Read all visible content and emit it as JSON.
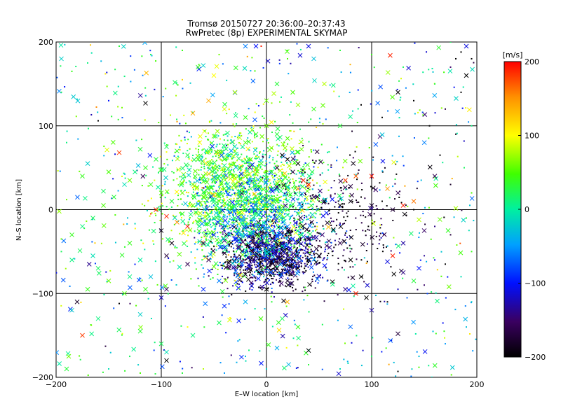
{
  "chart_data": {
    "type": "scatter",
    "title": "Tromsø 20150727 20:36:00–20:37:43",
    "subtitle": "RwPretec (8p) EXPERIMENTAL SKYMAP",
    "xlabel": "E–W location [km]",
    "ylabel": "N–S location [km]",
    "xlim": [
      -200,
      200
    ],
    "ylim": [
      -200,
      200
    ],
    "x_ticks": [
      -200,
      -100,
      0,
      100,
      200
    ],
    "y_ticks": [
      -200,
      -100,
      0,
      100,
      200
    ],
    "grid": true,
    "colorbar": {
      "label": "[m/s]",
      "range": [
        -200,
        200
      ],
      "ticks": [
        200,
        100,
        0,
        -100,
        -200
      ],
      "colormap": "black-purple-blue-cyan-green-yellow-red"
    },
    "marker_types": [
      "dot",
      "x"
    ],
    "points_note_values": "representative sample; [x_km, y_km, velocity_m_s, marker]",
    "points": [
      [
        -115,
        127,
        -200,
        "x"
      ],
      [
        -160,
        106,
        -200,
        "dot"
      ],
      [
        125,
        140,
        -200,
        "x"
      ],
      [
        -180,
        -110,
        -180,
        "x"
      ],
      [
        -140,
        68,
        180,
        "x"
      ],
      [
        -70,
        115,
        140,
        "x"
      ],
      [
        -85,
        105,
        150,
        "dot"
      ],
      [
        -120,
        72,
        30,
        "x"
      ],
      [
        -175,
        40,
        40,
        "x"
      ],
      [
        -155,
        22,
        20,
        "x"
      ],
      [
        -190,
        12,
        60,
        "dot"
      ],
      [
        -197,
        -2,
        70,
        "x"
      ],
      [
        -195,
        -35,
        60,
        "dot"
      ],
      [
        -130,
        -40,
        40,
        "x"
      ],
      [
        -165,
        -55,
        -10,
        "x"
      ],
      [
        -140,
        -112,
        -200,
        "dot"
      ],
      [
        -120,
        -125,
        -20,
        "x"
      ],
      [
        -175,
        -150,
        180,
        "x"
      ],
      [
        -188,
        -175,
        60,
        "x"
      ],
      [
        -130,
        -175,
        20,
        "dot"
      ],
      [
        -100,
        -105,
        -120,
        "x"
      ],
      [
        -75,
        -140,
        100,
        "dot"
      ],
      [
        -95,
        -95,
        -150,
        "x"
      ],
      [
        -60,
        -95,
        -90,
        "x"
      ],
      [
        -75,
        -65,
        -160,
        "x"
      ],
      [
        -95,
        -55,
        -170,
        "x"
      ],
      [
        -90,
        -40,
        -190,
        "x"
      ],
      [
        -100,
        -25,
        -190,
        "x"
      ],
      [
        -105,
        0,
        190,
        "x"
      ],
      [
        -95,
        -8,
        190,
        "x"
      ],
      [
        -85,
        -15,
        150,
        "x"
      ],
      [
        -75,
        -20,
        200,
        "x"
      ],
      [
        -110,
        -5,
        180,
        "dot"
      ],
      [
        -60,
        -40,
        -160,
        "x"
      ],
      [
        -55,
        -60,
        -160,
        "x"
      ],
      [
        -65,
        -82,
        -120,
        "dot"
      ],
      [
        -45,
        -85,
        -60,
        "x"
      ],
      [
        -25,
        -78,
        110,
        "x"
      ],
      [
        -15,
        -72,
        -190,
        "x"
      ],
      [
        -5,
        -68,
        -200,
        "x"
      ],
      [
        5,
        -62,
        -200,
        "x"
      ],
      [
        10,
        -70,
        -190,
        "x"
      ],
      [
        15,
        -55,
        -170,
        "x"
      ],
      [
        -10,
        -55,
        -170,
        "x"
      ],
      [
        -20,
        -60,
        -180,
        "dot"
      ],
      [
        0,
        -95,
        -200,
        "x"
      ],
      [
        20,
        -85,
        -180,
        "x"
      ],
      [
        30,
        -70,
        -200,
        "x"
      ],
      [
        40,
        -60,
        -200,
        "x"
      ],
      [
        50,
        -55,
        -200,
        "x"
      ],
      [
        60,
        -45,
        -140,
        "x"
      ],
      [
        70,
        -40,
        -160,
        "x"
      ],
      [
        80,
        -60,
        -200,
        "x"
      ],
      [
        90,
        -80,
        -200,
        "x"
      ],
      [
        95,
        -105,
        -200,
        "x"
      ],
      [
        85,
        -100,
        190,
        "x"
      ],
      [
        75,
        -95,
        -140,
        "x"
      ],
      [
        100,
        -120,
        -130,
        "x"
      ],
      [
        115,
        -110,
        -200,
        "dot"
      ],
      [
        125,
        -95,
        -120,
        "dot"
      ],
      [
        125,
        -148,
        -170,
        "x"
      ],
      [
        125,
        -193,
        -200,
        "dot"
      ],
      [
        40,
        -168,
        -200,
        "x"
      ],
      [
        30,
        -140,
        40,
        "x"
      ],
      [
        15,
        -130,
        20,
        "x"
      ],
      [
        5,
        -110,
        30,
        "dot"
      ],
      [
        -20,
        -110,
        -40,
        "x"
      ],
      [
        -40,
        -115,
        -90,
        "x"
      ],
      [
        -45,
        -135,
        20,
        "x"
      ],
      [
        -70,
        -150,
        10,
        "x"
      ],
      [
        -95,
        -170,
        -10,
        "x"
      ],
      [
        -95,
        -180,
        -200,
        "x"
      ],
      [
        -60,
        -190,
        80,
        "dot"
      ],
      [
        -20,
        -175,
        -30,
        "dot"
      ],
      [
        10,
        -165,
        -40,
        "x"
      ],
      [
        30,
        55,
        -200,
        "x"
      ],
      [
        20,
        60,
        -190,
        "x"
      ],
      [
        15,
        65,
        -200,
        "x"
      ],
      [
        10,
        50,
        -180,
        "x"
      ],
      [
        25,
        45,
        -170,
        "x"
      ],
      [
        35,
        35,
        190,
        "x"
      ],
      [
        40,
        30,
        200,
        "x"
      ],
      [
        30,
        25,
        160,
        "x"
      ],
      [
        45,
        15,
        -160,
        "x"
      ],
      [
        55,
        10,
        -190,
        "x"
      ],
      [
        60,
        0,
        -200,
        "dot"
      ],
      [
        70,
        5,
        -200,
        "x"
      ],
      [
        80,
        10,
        -190,
        "x"
      ],
      [
        90,
        15,
        -200,
        "dot"
      ],
      [
        100,
        5,
        -180,
        "x"
      ],
      [
        110,
        10,
        -200,
        "dot"
      ],
      [
        120,
        0,
        -170,
        "x"
      ],
      [
        130,
        5,
        190,
        "x"
      ],
      [
        140,
        10,
        160,
        "x"
      ],
      [
        75,
        35,
        180,
        "x"
      ],
      [
        85,
        40,
        170,
        "x"
      ],
      [
        100,
        40,
        190,
        "x"
      ],
      [
        115,
        25,
        150,
        "x"
      ],
      [
        125,
        20,
        -160,
        "x"
      ],
      [
        140,
        0,
        -200,
        "dot"
      ],
      [
        145,
        -12,
        80,
        "x"
      ],
      [
        150,
        -25,
        -150,
        "x"
      ],
      [
        130,
        -40,
        -130,
        "x"
      ],
      [
        120,
        -55,
        190,
        "x"
      ],
      [
        115,
        -62,
        -110,
        "x"
      ],
      [
        130,
        -75,
        -140,
        "x"
      ],
      [
        145,
        -70,
        -100,
        "x"
      ],
      [
        150,
        -90,
        -150,
        "dot"
      ],
      [
        140,
        -85,
        30,
        "x"
      ],
      [
        160,
        -60,
        -110,
        "dot"
      ],
      [
        170,
        -65,
        -200,
        "dot"
      ],
      [
        175,
        -30,
        -170,
        "dot"
      ],
      [
        160,
        -20,
        -140,
        "dot"
      ],
      [
        175,
        30,
        -180,
        "dot"
      ],
      [
        160,
        40,
        -160,
        "x"
      ],
      [
        165,
        65,
        -200,
        "dot"
      ],
      [
        180,
        90,
        -190,
        "dot"
      ],
      [
        170,
        120,
        -170,
        "dot"
      ],
      [
        185,
        140,
        -200,
        "dot"
      ],
      [
        190,
        160,
        -200,
        "x"
      ],
      [
        175,
        170,
        -150,
        "dot"
      ],
      [
        180,
        180,
        -200,
        "dot"
      ],
      [
        185,
        188,
        -200,
        "dot"
      ],
      [
        195,
        180,
        -200,
        "dot"
      ],
      [
        190,
        195,
        -110,
        "x"
      ],
      [
        175,
        200,
        20,
        "dot"
      ],
      [
        140,
        130,
        -200,
        "dot"
      ],
      [
        155,
        100,
        -200,
        "dot"
      ],
      [
        110,
        110,
        -200,
        "dot"
      ],
      [
        90,
        125,
        -200,
        "dot"
      ],
      [
        70,
        100,
        30,
        "x"
      ],
      [
        55,
        150,
        80,
        "x"
      ],
      [
        45,
        180,
        -30,
        "x"
      ],
      [
        40,
        195,
        -110,
        "x"
      ],
      [
        -10,
        195,
        -100,
        "x"
      ],
      [
        -20,
        195,
        -60,
        "x"
      ],
      [
        -5,
        195,
        190,
        "dot"
      ],
      [
        -45,
        185,
        60,
        "dot"
      ],
      [
        -65,
        170,
        40,
        "x"
      ],
      [
        -50,
        160,
        100,
        "x"
      ],
      [
        -80,
        155,
        120,
        "dot"
      ],
      [
        -55,
        130,
        140,
        "x"
      ],
      [
        -30,
        140,
        80,
        "x"
      ],
      [
        -40,
        120,
        90,
        "x"
      ],
      [
        -20,
        110,
        40,
        "x"
      ],
      [
        0,
        130,
        60,
        "x"
      ],
      [
        10,
        150,
        30,
        "x"
      ],
      [
        25,
        140,
        50,
        "x"
      ],
      [
        30,
        125,
        70,
        "x"
      ],
      [
        45,
        120,
        40,
        "x"
      ],
      [
        -150,
        130,
        -100,
        "dot"
      ],
      [
        -185,
        165,
        40,
        "dot"
      ],
      [
        -195,
        180,
        -20,
        "x"
      ],
      [
        -195,
        140,
        20,
        "dot"
      ],
      [
        -190,
        80,
        10,
        "dot"
      ],
      [
        -170,
        55,
        -20,
        "x"
      ],
      [
        -150,
        45,
        50,
        "x"
      ],
      [
        -130,
        35,
        60,
        "x"
      ],
      [
        -110,
        30,
        40,
        "x"
      ],
      [
        -100,
        20,
        50,
        "x"
      ],
      [
        -90,
        10,
        30,
        "x"
      ],
      [
        -80,
        20,
        60,
        "x"
      ],
      [
        -70,
        30,
        70,
        "x"
      ],
      [
        -60,
        40,
        50,
        "x"
      ],
      [
        -50,
        50,
        60,
        "x"
      ],
      [
        -40,
        60,
        40,
        "x"
      ],
      [
        -30,
        70,
        60,
        "x"
      ],
      [
        -20,
        80,
        50,
        "x"
      ],
      [
        -10,
        90,
        40,
        "x"
      ],
      [
        0,
        100,
        60,
        "x"
      ],
      [
        10,
        90,
        30,
        "x"
      ],
      [
        20,
        85,
        50,
        "x"
      ],
      [
        -55,
        20,
        40,
        "x"
      ],
      [
        -45,
        10,
        50,
        "x"
      ],
      [
        -35,
        5,
        30,
        "x"
      ],
      [
        -25,
        15,
        60,
        "x"
      ],
      [
        -15,
        25,
        40,
        "x"
      ],
      [
        -5,
        35,
        50,
        "x"
      ],
      [
        -30,
        30,
        40,
        "x"
      ],
      [
        -20,
        40,
        50,
        "x"
      ],
      [
        -40,
        25,
        40,
        "x"
      ],
      [
        -50,
        35,
        30,
        "x"
      ],
      [
        -60,
        15,
        50,
        "x"
      ],
      [
        -70,
        5,
        60,
        "x"
      ],
      [
        -80,
        -5,
        40,
        "x"
      ],
      [
        -65,
        -15,
        20,
        "x"
      ],
      [
        -50,
        -10,
        10,
        "x"
      ],
      [
        -40,
        -20,
        -20,
        "x"
      ],
      [
        -30,
        -10,
        20,
        "x"
      ],
      [
        -20,
        0,
        30,
        "x"
      ],
      [
        -10,
        -5,
        20,
        "x"
      ],
      [
        0,
        5,
        30,
        "x"
      ],
      [
        10,
        10,
        40,
        "x"
      ],
      [
        20,
        0,
        20,
        "x"
      ],
      [
        30,
        -5,
        10,
        "x"
      ],
      [
        -10,
        -20,
        -40,
        "x"
      ],
      [
        0,
        -25,
        -60,
        "x"
      ],
      [
        10,
        -30,
        -80,
        "x"
      ],
      [
        20,
        -20,
        -60,
        "x"
      ],
      [
        -20,
        -30,
        -70,
        "x"
      ],
      [
        -30,
        -35,
        -90,
        "x"
      ],
      [
        -5,
        -40,
        -110,
        "x"
      ],
      [
        5,
        -45,
        -130,
        "x"
      ],
      [
        15,
        -40,
        -120,
        "x"
      ],
      [
        25,
        -35,
        -100,
        "x"
      ],
      [
        -40,
        -45,
        -100,
        "x"
      ],
      [
        -50,
        -30,
        -90,
        "x"
      ],
      [
        0,
        15,
        30,
        "x"
      ],
      [
        -5,
        55,
        40,
        "x"
      ],
      [
        5,
        45,
        30,
        "x"
      ],
      [
        -15,
        60,
        50,
        "x"
      ],
      [
        -25,
        50,
        40,
        "x"
      ],
      [
        -35,
        45,
        30,
        "x"
      ],
      [
        -45,
        40,
        20,
        "x"
      ],
      [
        -55,
        55,
        40,
        "x"
      ],
      [
        -65,
        60,
        50,
        "x"
      ],
      [
        -75,
        65,
        30,
        "x"
      ],
      [
        -85,
        70,
        40,
        "x"
      ],
      [
        -95,
        75,
        20,
        "x"
      ],
      [
        -105,
        60,
        30,
        "x"
      ],
      [
        -115,
        50,
        40,
        "x"
      ],
      [
        -125,
        45,
        10,
        "x"
      ],
      [
        -135,
        30,
        -10,
        "x"
      ],
      [
        -145,
        15,
        30,
        "x"
      ],
      [
        -155,
        5,
        50,
        "x"
      ],
      [
        -165,
        -10,
        20,
        "x"
      ],
      [
        -175,
        -20,
        10,
        "x"
      ],
      [
        -185,
        -30,
        40,
        "x"
      ],
      [
        -160,
        -70,
        20,
        "x"
      ],
      [
        -150,
        -85,
        60,
        "x"
      ],
      [
        -170,
        -95,
        40,
        "x"
      ],
      [
        -185,
        -60,
        10,
        "x"
      ],
      [
        -195,
        -50,
        20,
        "dot"
      ],
      [
        -120,
        -60,
        0,
        "x"
      ],
      [
        -110,
        -80,
        -30,
        "x"
      ],
      [
        -115,
        -95,
        40,
        "x"
      ],
      [
        -130,
        -80,
        10,
        "x"
      ],
      [
        -135,
        -100,
        50,
        "x"
      ],
      [
        -120,
        -145,
        30,
        "x"
      ],
      [
        -100,
        -160,
        20,
        "x"
      ],
      [
        -160,
        -130,
        10,
        "x"
      ],
      [
        -185,
        -120,
        -20,
        "x"
      ],
      [
        -190,
        -190,
        30,
        "x"
      ],
      [
        -150,
        -190,
        -10,
        "dot"
      ],
      [
        -120,
        -195,
        50,
        "dot"
      ],
      [
        -80,
        -195,
        30,
        "dot"
      ],
      [
        -40,
        -195,
        -50,
        "dot"
      ],
      [
        0,
        -190,
        -20,
        "dot"
      ],
      [
        40,
        -185,
        30,
        "dot"
      ],
      [
        70,
        -190,
        -10,
        "dot"
      ],
      [
        100,
        -175,
        20,
        "dot"
      ],
      [
        145,
        -175,
        -30,
        "dot"
      ],
      [
        170,
        -160,
        -50,
        "dot"
      ],
      [
        190,
        -140,
        -30,
        "dot"
      ],
      [
        195,
        -110,
        -20,
        "dot"
      ],
      [
        185,
        -80,
        -10,
        "dot"
      ],
      [
        195,
        -50,
        40,
        "dot"
      ],
      [
        190,
        -10,
        30,
        "dot"
      ],
      [
        195,
        20,
        50,
        "dot"
      ],
      [
        188,
        50,
        20,
        "dot"
      ],
      [
        195,
        100,
        10,
        "dot"
      ],
      [
        160,
        150,
        30,
        "dot"
      ],
      [
        130,
        170,
        20,
        "dot"
      ],
      [
        100,
        185,
        40,
        "dot"
      ],
      [
        70,
        190,
        30,
        "dot"
      ],
      [
        20,
        180,
        50,
        "dot"
      ],
      [
        -80,
        190,
        40,
        "dot"
      ],
      [
        -110,
        185,
        20,
        "dot"
      ],
      [
        -140,
        195,
        30,
        "dot"
      ],
      [
        -170,
        175,
        10,
        "dot"
      ]
    ]
  }
}
